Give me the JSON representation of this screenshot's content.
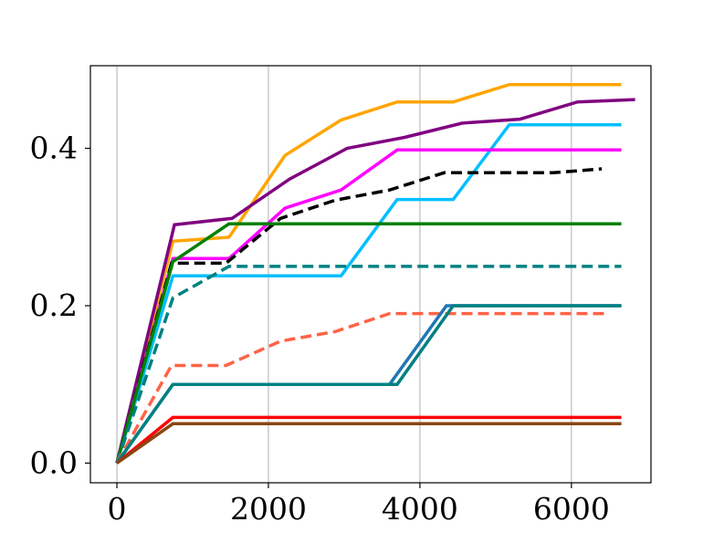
{
  "chart_data": {
    "type": "line",
    "title": "",
    "xlabel": "",
    "ylabel": "",
    "xlim": [
      -350,
      7050
    ],
    "ylim": [
      -0.025,
      0.505
    ],
    "grid": {
      "x": true,
      "y": false
    },
    "legend": "none",
    "x_ticks": [
      0,
      2000,
      4000,
      6000
    ],
    "x_tick_labels": [
      "0",
      "2000",
      "4000",
      "6000"
    ],
    "y_ticks": [
      0.0,
      0.2,
      0.4
    ],
    "y_tick_labels": [
      "0.0",
      "0.2",
      "0.4"
    ],
    "series": [
      {
        "color": "#ffa500",
        "dash": "solid",
        "points": [
          [
            0,
            0
          ],
          [
            740,
            0.282
          ],
          [
            1480,
            0.287
          ],
          [
            2220,
            0.391
          ],
          [
            2960,
            0.436
          ],
          [
            3700,
            0.459
          ],
          [
            4440,
            0.459
          ],
          [
            5180,
            0.481
          ],
          [
            5920,
            0.481
          ],
          [
            6660,
            0.481
          ]
        ]
      },
      {
        "color": "#800080",
        "dash": "solid",
        "points": [
          [
            0,
            0
          ],
          [
            760,
            0.303
          ],
          [
            1520,
            0.311
          ],
          [
            2280,
            0.361
          ],
          [
            3040,
            0.4
          ],
          [
            3800,
            0.414
          ],
          [
            4560,
            0.432
          ],
          [
            5320,
            0.437
          ],
          [
            6080,
            0.459
          ],
          [
            6840,
            0.462
          ]
        ]
      },
      {
        "color": "#00bfff",
        "dash": "solid",
        "points": [
          [
            0,
            0
          ],
          [
            740,
            0.238
          ],
          [
            1480,
            0.238
          ],
          [
            2220,
            0.238
          ],
          [
            2960,
            0.238
          ],
          [
            3700,
            0.335
          ],
          [
            4440,
            0.335
          ],
          [
            5180,
            0.43
          ],
          [
            5920,
            0.43
          ],
          [
            6660,
            0.43
          ]
        ]
      },
      {
        "color": "#ff00ff",
        "dash": "solid",
        "points": [
          [
            0,
            0
          ],
          [
            740,
            0.26
          ],
          [
            1480,
            0.26
          ],
          [
            2220,
            0.324
          ],
          [
            2960,
            0.347
          ],
          [
            3700,
            0.398
          ],
          [
            4440,
            0.398
          ],
          [
            5180,
            0.398
          ],
          [
            5920,
            0.398
          ],
          [
            6660,
            0.398
          ]
        ]
      },
      {
        "color": "#000000",
        "dash": "dashed",
        "points": [
          [
            0,
            0
          ],
          [
            720,
            0.254
          ],
          [
            1440,
            0.254
          ],
          [
            2160,
            0.311
          ],
          [
            2880,
            0.334
          ],
          [
            3600,
            0.347
          ],
          [
            4320,
            0.369
          ],
          [
            5040,
            0.369
          ],
          [
            5760,
            0.369
          ],
          [
            6400,
            0.374
          ]
        ]
      },
      {
        "color": "#008000",
        "dash": "solid",
        "points": [
          [
            0,
            0
          ],
          [
            740,
            0.256
          ],
          [
            1480,
            0.304
          ],
          [
            2220,
            0.304
          ],
          [
            2960,
            0.304
          ],
          [
            3700,
            0.304
          ],
          [
            4440,
            0.304
          ],
          [
            5180,
            0.304
          ],
          [
            5920,
            0.304
          ],
          [
            6660,
            0.304
          ]
        ]
      },
      {
        "color": "#008080",
        "dash": "dashed",
        "points": [
          [
            0,
            0
          ],
          [
            740,
            0.21
          ],
          [
            1480,
            0.25
          ],
          [
            2220,
            0.25
          ],
          [
            2960,
            0.25
          ],
          [
            3700,
            0.25
          ],
          [
            4440,
            0.25
          ],
          [
            5180,
            0.25
          ],
          [
            5920,
            0.25
          ],
          [
            6660,
            0.25
          ]
        ]
      },
      {
        "color": "#ff6347",
        "dash": "dashed",
        "points": [
          [
            0,
            0
          ],
          [
            720,
            0.124
          ],
          [
            1440,
            0.124
          ],
          [
            2160,
            0.155
          ],
          [
            2880,
            0.167
          ],
          [
            3600,
            0.19
          ],
          [
            4320,
            0.19
          ],
          [
            5040,
            0.19
          ],
          [
            5760,
            0.19
          ],
          [
            6500,
            0.19
          ]
        ]
      },
      {
        "color": "#1f77b4",
        "dash": "solid",
        "points": [
          [
            0,
            0
          ],
          [
            740,
            0.1
          ],
          [
            1480,
            0.1
          ],
          [
            2220,
            0.1
          ],
          [
            2960,
            0.1
          ],
          [
            3600,
            0.1
          ],
          [
            4350,
            0.2
          ],
          [
            5180,
            0.2
          ],
          [
            5920,
            0.2
          ],
          [
            6660,
            0.2
          ]
        ]
      },
      {
        "color": "#008080",
        "dash": "solid",
        "points": [
          [
            0,
            0
          ],
          [
            740,
            0.1
          ],
          [
            1480,
            0.1
          ],
          [
            2220,
            0.1
          ],
          [
            2960,
            0.1
          ],
          [
            3700,
            0.1
          ],
          [
            4440,
            0.2
          ],
          [
            5180,
            0.2
          ],
          [
            5920,
            0.2
          ],
          [
            6660,
            0.2
          ]
        ]
      },
      {
        "color": "#ff0000",
        "dash": "solid",
        "points": [
          [
            0,
            0
          ],
          [
            740,
            0.058
          ],
          [
            1480,
            0.058
          ],
          [
            2220,
            0.058
          ],
          [
            2960,
            0.058
          ],
          [
            3700,
            0.058
          ],
          [
            4440,
            0.058
          ],
          [
            5180,
            0.058
          ],
          [
            5920,
            0.058
          ],
          [
            6660,
            0.058
          ]
        ]
      },
      {
        "color": "#8b4513",
        "dash": "solid",
        "points": [
          [
            0,
            0
          ],
          [
            740,
            0.05
          ],
          [
            1480,
            0.05
          ],
          [
            2220,
            0.05
          ],
          [
            2960,
            0.05
          ],
          [
            3700,
            0.05
          ],
          [
            4440,
            0.05
          ],
          [
            5180,
            0.05
          ],
          [
            5920,
            0.05
          ],
          [
            6660,
            0.05
          ]
        ]
      }
    ]
  }
}
